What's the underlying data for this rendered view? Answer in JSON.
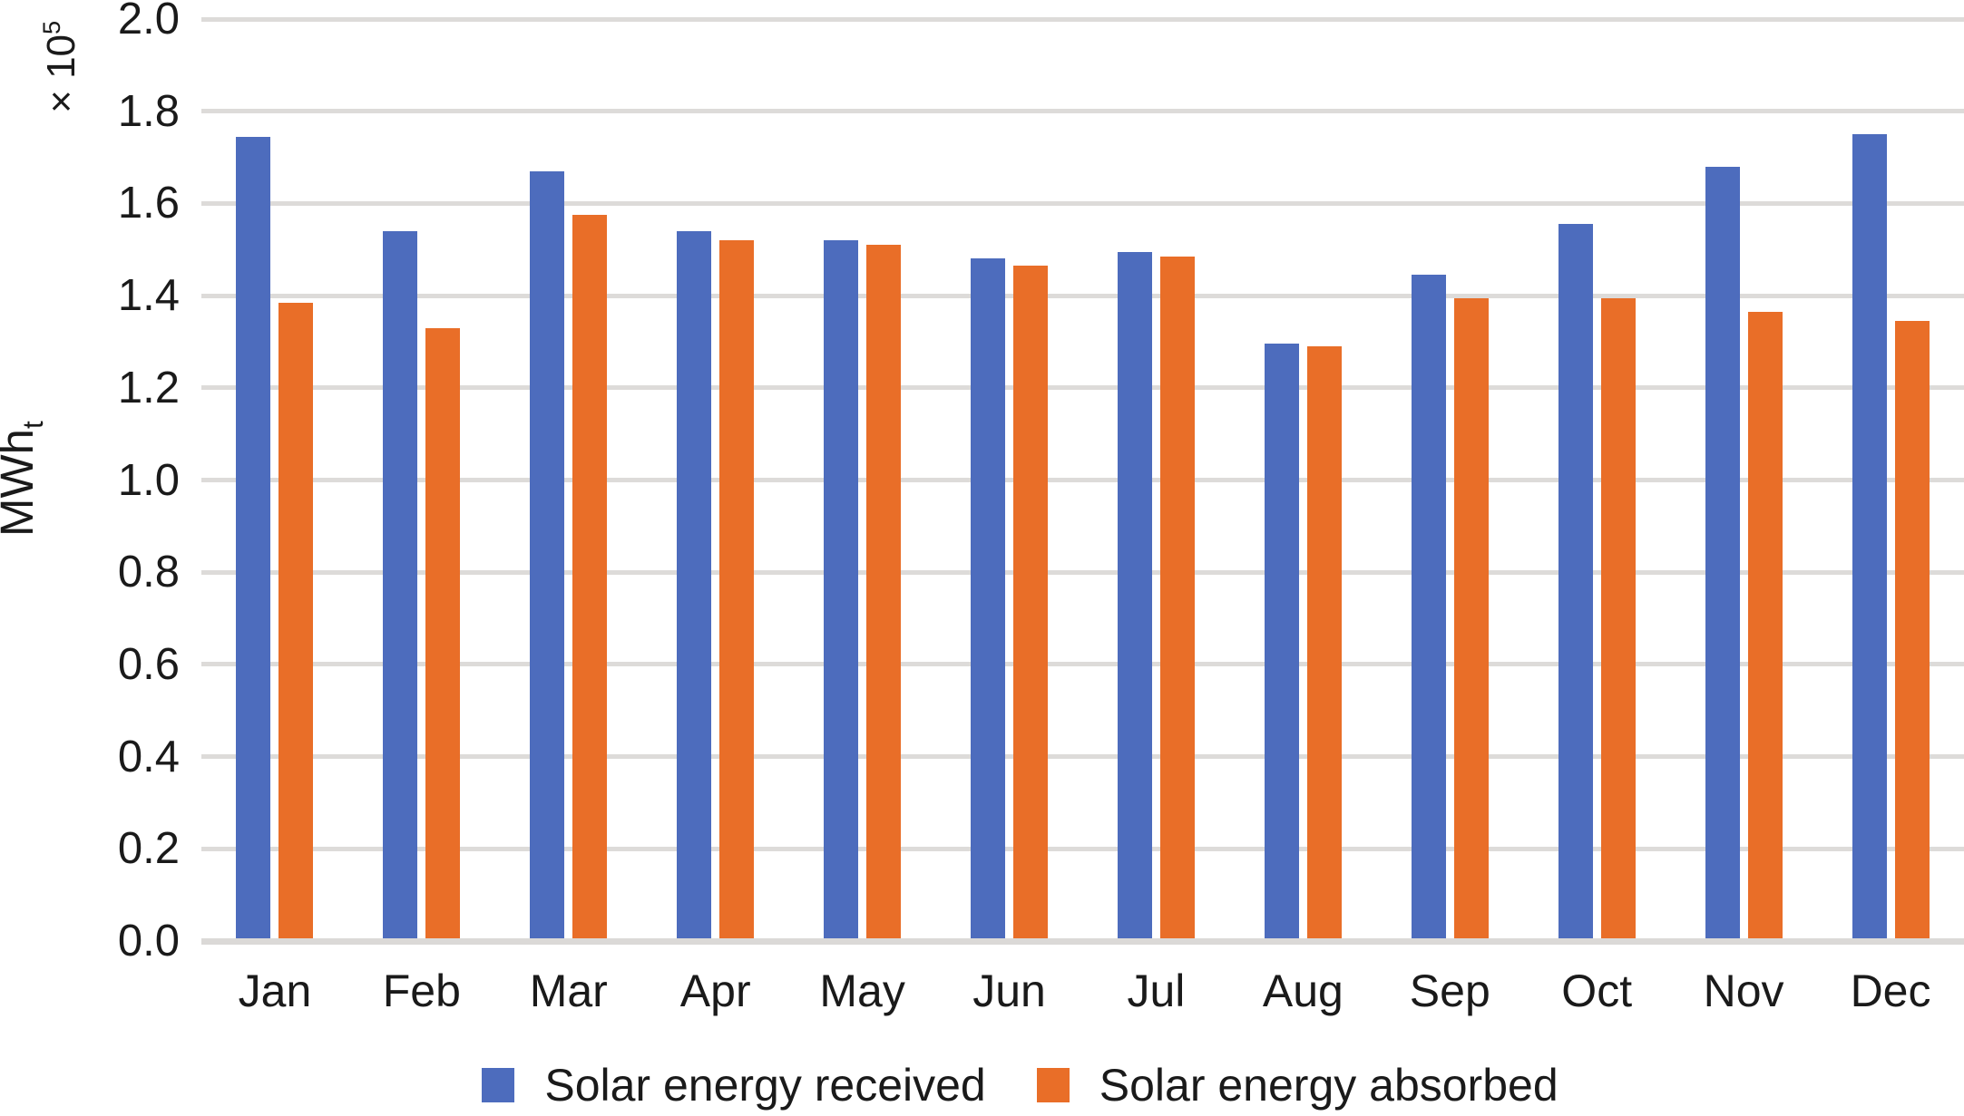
{
  "figure": {
    "background": "#ffffff",
    "text_color": "#1a1a1a",
    "gridline_color": "#dddbd9",
    "axisline_color": "#dbd9d7"
  },
  "y_axis": {
    "scale_prefix": "× 10",
    "scale_exponent": "5",
    "unit_main": "MWh",
    "unit_subscript": "t",
    "ticks": [
      "2.0",
      "1.8",
      "1.6",
      "1.4",
      "1.2",
      "1.0",
      "0.8",
      "0.6",
      "0.4",
      "0.2",
      "0.0"
    ]
  },
  "chart_data": {
    "type": "bar",
    "title": "",
    "xlabel": "",
    "ylabel": "MWh_t (× 10^5)",
    "ylim": [
      0,
      2.0
    ],
    "ytick_step": 0.2,
    "grid": "horizontal",
    "legend_position": "bottom",
    "categories": [
      "Jan",
      "Feb",
      "Mar",
      "Apr",
      "May",
      "Jun",
      "Jul",
      "Aug",
      "Sep",
      "Oct",
      "Nov",
      "Dec"
    ],
    "series": [
      {
        "name": "Solar energy received",
        "color": "#4D6CBD",
        "values": [
          1.745,
          1.54,
          1.67,
          1.54,
          1.52,
          1.48,
          1.495,
          1.295,
          1.445,
          1.555,
          1.68,
          1.75
        ]
      },
      {
        "name": "Solar energy absorbed",
        "color": "#E96E28",
        "values": [
          1.385,
          1.33,
          1.575,
          1.52,
          1.51,
          1.465,
          1.485,
          1.29,
          1.395,
          1.395,
          1.365,
          1.345
        ]
      }
    ]
  },
  "legend": {
    "items": [
      {
        "label": "Solar energy received",
        "color": "#4D6CBD"
      },
      {
        "label": "Solar energy absorbed",
        "color": "#E96E28"
      }
    ]
  }
}
